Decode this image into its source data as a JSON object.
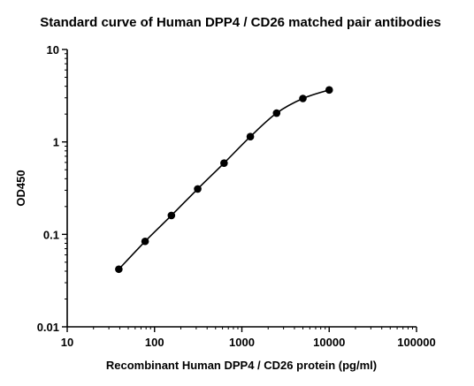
{
  "chart_data": {
    "type": "scatter",
    "title": "Standard curve of Human DPP4 / CD26 matched pair antibodies",
    "xlabel": "Recombinant Human DPP4 / CD26 protein (pg/ml)",
    "ylabel": "OD450",
    "x_scale": "log",
    "y_scale": "log",
    "xlim": [
      10,
      100000
    ],
    "ylim": [
      0.01,
      10
    ],
    "x_ticks": [
      "10",
      "100",
      "1000",
      "10000",
      "100000"
    ],
    "y_ticks": [
      "0.01",
      "0.1",
      "1",
      "10"
    ],
    "grid": false,
    "fit_line": true,
    "series": [
      {
        "x": [
          39,
          78,
          156,
          312,
          625,
          1250,
          2500,
          5000,
          10000
        ],
        "y": [
          0.042,
          0.084,
          0.16,
          0.31,
          0.59,
          1.14,
          2.05,
          2.95,
          3.65
        ]
      }
    ]
  }
}
